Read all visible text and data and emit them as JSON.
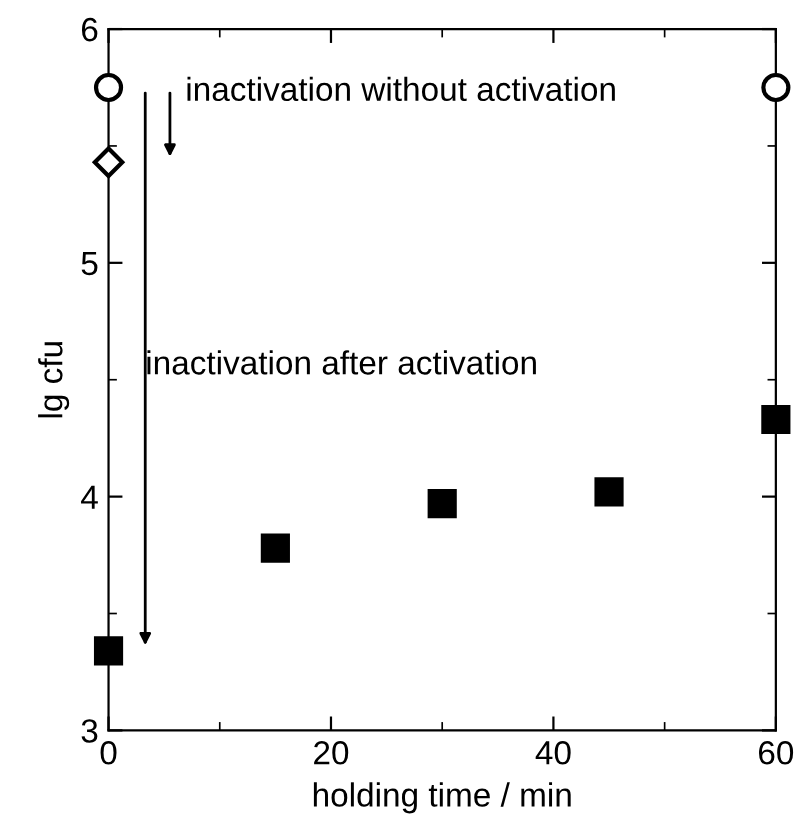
{
  "chart_data": {
    "type": "scatter",
    "xlabel": "holding time / min",
    "ylabel": "lg cfu",
    "series": [
      {
        "color": "#000000",
        "marker": "circle",
        "x": [
          0,
          60
        ],
        "values": [
          5.75,
          5.75
        ]
      },
      {
        "color": "#000000",
        "marker": "diamond",
        "x": [
          0
        ],
        "values": [
          5.43
        ]
      },
      {
        "color": "#000000",
        "marker": "square",
        "x": [
          0,
          15,
          30,
          45,
          60
        ],
        "values": [
          3.34,
          3.78,
          3.97,
          4.02,
          4.33
        ]
      }
    ],
    "annotations": [
      "inactivation without activation",
      "inactivation after activation"
    ],
    "xlim": [
      0,
      60
    ],
    "xticks": [
      0,
      20,
      40,
      60
    ],
    "ylim": [
      3,
      6
    ],
    "yticks": [
      3,
      4,
      5,
      6
    ],
    "grid": false,
    "legend": false
  }
}
